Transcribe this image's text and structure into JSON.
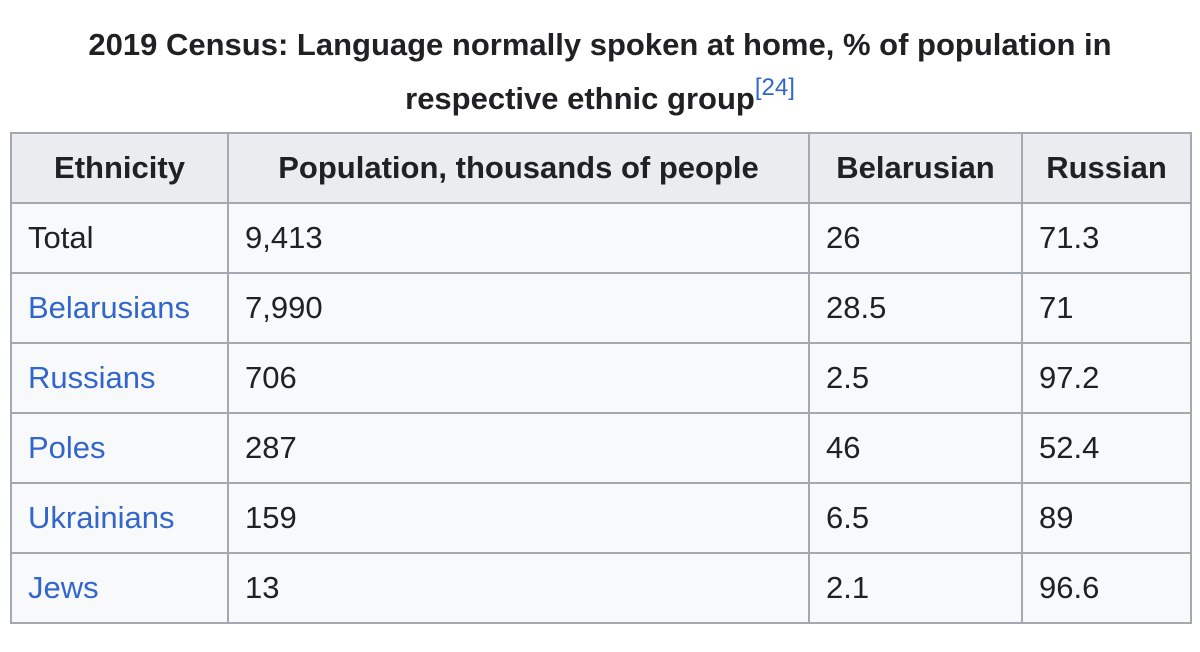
{
  "caption": {
    "title": "2019 Census: Language normally spoken at home, % of population in respective ethnic group",
    "reference": "[24]"
  },
  "table": {
    "header": [
      "Ethnicity",
      "Population, thousands of people",
      "Belarusian",
      "Russian"
    ],
    "rows": [
      {
        "ethnicity": "Total",
        "link": false,
        "cells": [
          "9,413",
          "26",
          "71.3"
        ]
      },
      {
        "ethnicity": "Belarusians",
        "link": true,
        "cells": [
          "7,990",
          "28.5",
          "71"
        ]
      },
      {
        "ethnicity": "Russians",
        "link": true,
        "cells": [
          "706",
          "2.5",
          "97.2"
        ]
      },
      {
        "ethnicity": "Poles",
        "link": true,
        "cells": [
          "287",
          "46",
          "52.4"
        ]
      },
      {
        "ethnicity": "Ukrainians",
        "link": true,
        "cells": [
          "159",
          "6.5",
          "89"
        ]
      },
      {
        "ethnicity": "Jews",
        "link": true,
        "cells": [
          "13",
          "2.1",
          "96.6"
        ]
      }
    ]
  }
}
